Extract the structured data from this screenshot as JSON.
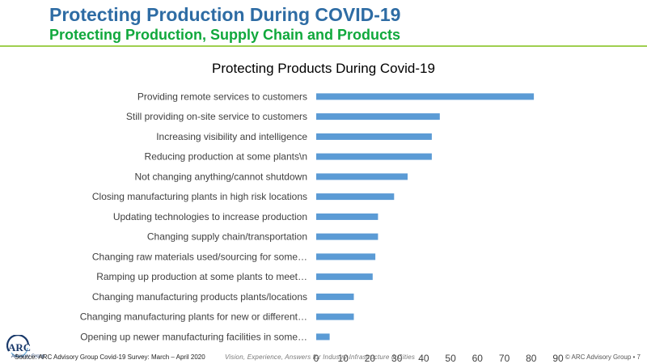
{
  "header": {
    "title": "Protecting Production During COVID-19",
    "subtitle": "Protecting Production, Supply Chain and Products"
  },
  "chart_data": {
    "type": "bar",
    "orientation": "horizontal",
    "title": "Protecting Products During Covid-19",
    "categories": [
      "Providing remote services to customers",
      "Still providing on-site service to customers",
      "Increasing visibility and intelligence",
      "Reducing production at some plants\\n",
      "Not changing anything/cannot shutdown",
      "Closing manufacturing plants in high risk locations",
      "Updating technologies to increase production",
      "Changing supply chain/transportation",
      "Changing raw materials used/sourcing for some…",
      "Ramping up production at some plants to meet…",
      "Changing manufacturing products plants/locations",
      "Changing manufacturing plants for new or different…",
      "Opening up newer manufacturing facilities in some…"
    ],
    "values": [
      81,
      46,
      43,
      43,
      34,
      29,
      23,
      23,
      22,
      21,
      14,
      14,
      5
    ],
    "xlim": [
      0,
      90
    ],
    "xticks": [
      0,
      10,
      20,
      30,
      40,
      50,
      60,
      70,
      80,
      90
    ],
    "bar_color": "#5b9bd5",
    "grid": false
  },
  "footer": {
    "logo_text": "ARC",
    "logo_sub": "Advisory Group",
    "source": "Source: ARC Advisory Group Covid-19 Survey: March – April 2020",
    "tagline": "Vision, Experience, Answers for Industry Infrastructure & Cities",
    "copyright": "© ARC Advisory Group • 7"
  }
}
